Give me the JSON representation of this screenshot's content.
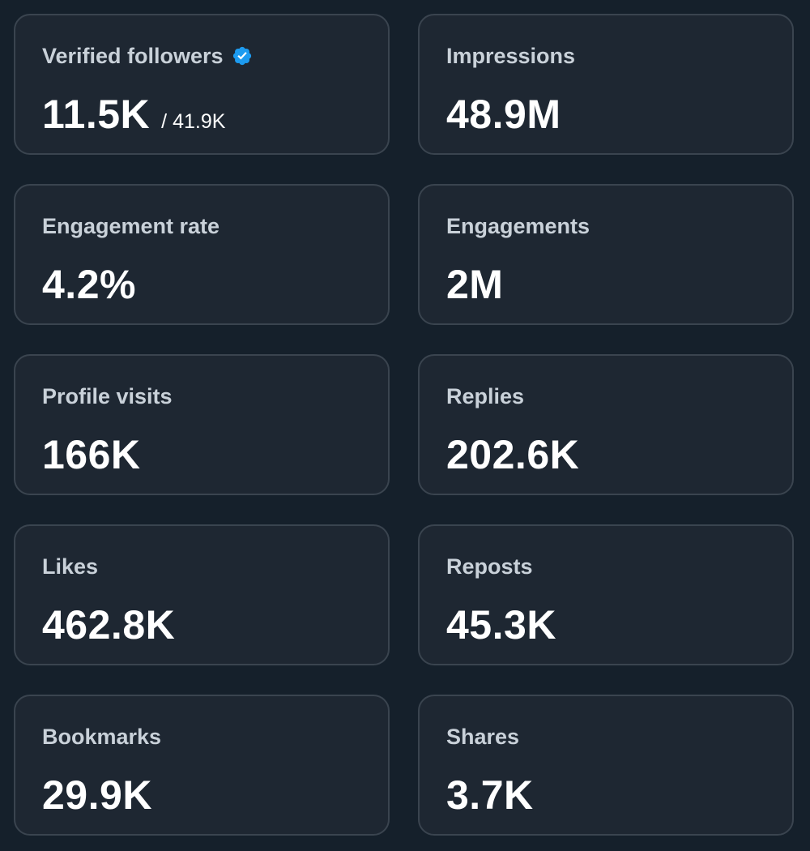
{
  "colors": {
    "background": "#15202b",
    "card": "#1e2732",
    "card_border": "#3a444f",
    "label": "#c9d1d9",
    "value": "#ffffff",
    "verified": "#1d9bf0"
  },
  "metrics": [
    {
      "label": "Verified followers",
      "value": "11.5K",
      "subvalue": "/ 41.9K",
      "icon": "verified-badge-icon"
    },
    {
      "label": "Impressions",
      "value": "48.9M"
    },
    {
      "label": "Engagement rate",
      "value": "4.2%"
    },
    {
      "label": "Engagements",
      "value": "2M"
    },
    {
      "label": "Profile visits",
      "value": "166K"
    },
    {
      "label": "Replies",
      "value": "202.6K"
    },
    {
      "label": "Likes",
      "value": "462.8K"
    },
    {
      "label": "Reposts",
      "value": "45.3K"
    },
    {
      "label": "Bookmarks",
      "value": "29.9K"
    },
    {
      "label": "Shares",
      "value": "3.7K"
    }
  ]
}
